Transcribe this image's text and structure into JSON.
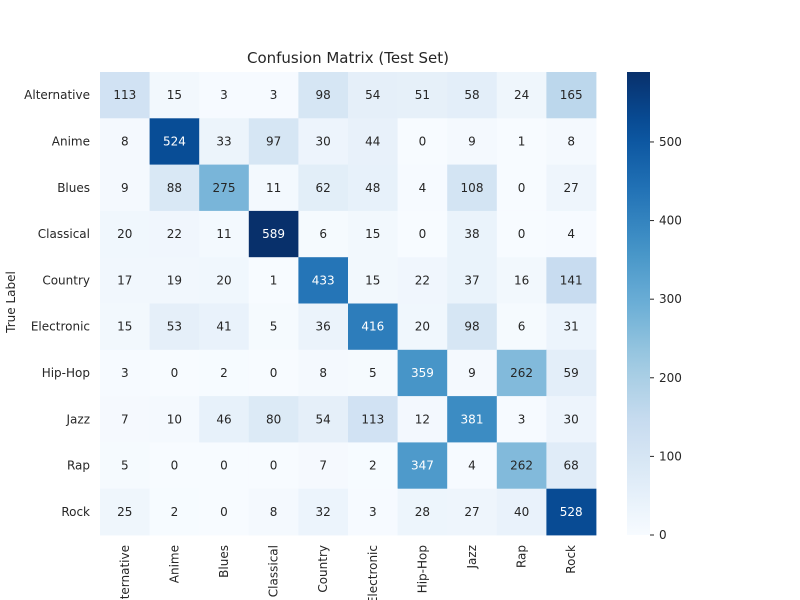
{
  "chart_data": {
    "type": "heatmap",
    "title": "Confusion Matrix (Test Set)",
    "ylabel": "True Label",
    "xlabel": "",
    "rows": [
      "Alternative",
      "Anime",
      "Blues",
      "Classical",
      "Country",
      "Electronic",
      "Hip-Hop",
      "Jazz",
      "Rap",
      "Rock"
    ],
    "columns": [
      "Alternative",
      "Anime",
      "Blues",
      "Classical",
      "Country",
      "Electronic",
      "Hip-Hop",
      "Jazz",
      "Rap",
      "Rock"
    ],
    "values": [
      [
        113,
        15,
        3,
        3,
        98,
        54,
        51,
        58,
        24,
        165
      ],
      [
        8,
        524,
        33,
        97,
        30,
        44,
        0,
        9,
        1,
        8
      ],
      [
        9,
        88,
        275,
        11,
        62,
        48,
        4,
        108,
        0,
        27
      ],
      [
        20,
        22,
        11,
        589,
        6,
        15,
        0,
        38,
        0,
        4
      ],
      [
        17,
        19,
        20,
        1,
        433,
        15,
        22,
        37,
        16,
        141
      ],
      [
        15,
        53,
        41,
        5,
        36,
        416,
        20,
        98,
        6,
        31
      ],
      [
        3,
        0,
        2,
        0,
        8,
        5,
        359,
        9,
        262,
        59
      ],
      [
        7,
        10,
        46,
        80,
        54,
        113,
        12,
        381,
        3,
        30
      ],
      [
        5,
        0,
        0,
        0,
        7,
        2,
        347,
        4,
        262,
        68
      ],
      [
        25,
        2,
        0,
        8,
        32,
        3,
        28,
        27,
        40,
        528
      ]
    ],
    "colorbar": {
      "range": [
        0,
        589
      ],
      "ticks": [
        0,
        100,
        200,
        300,
        400,
        500
      ],
      "colormap": "Blues"
    },
    "grid": false
  }
}
